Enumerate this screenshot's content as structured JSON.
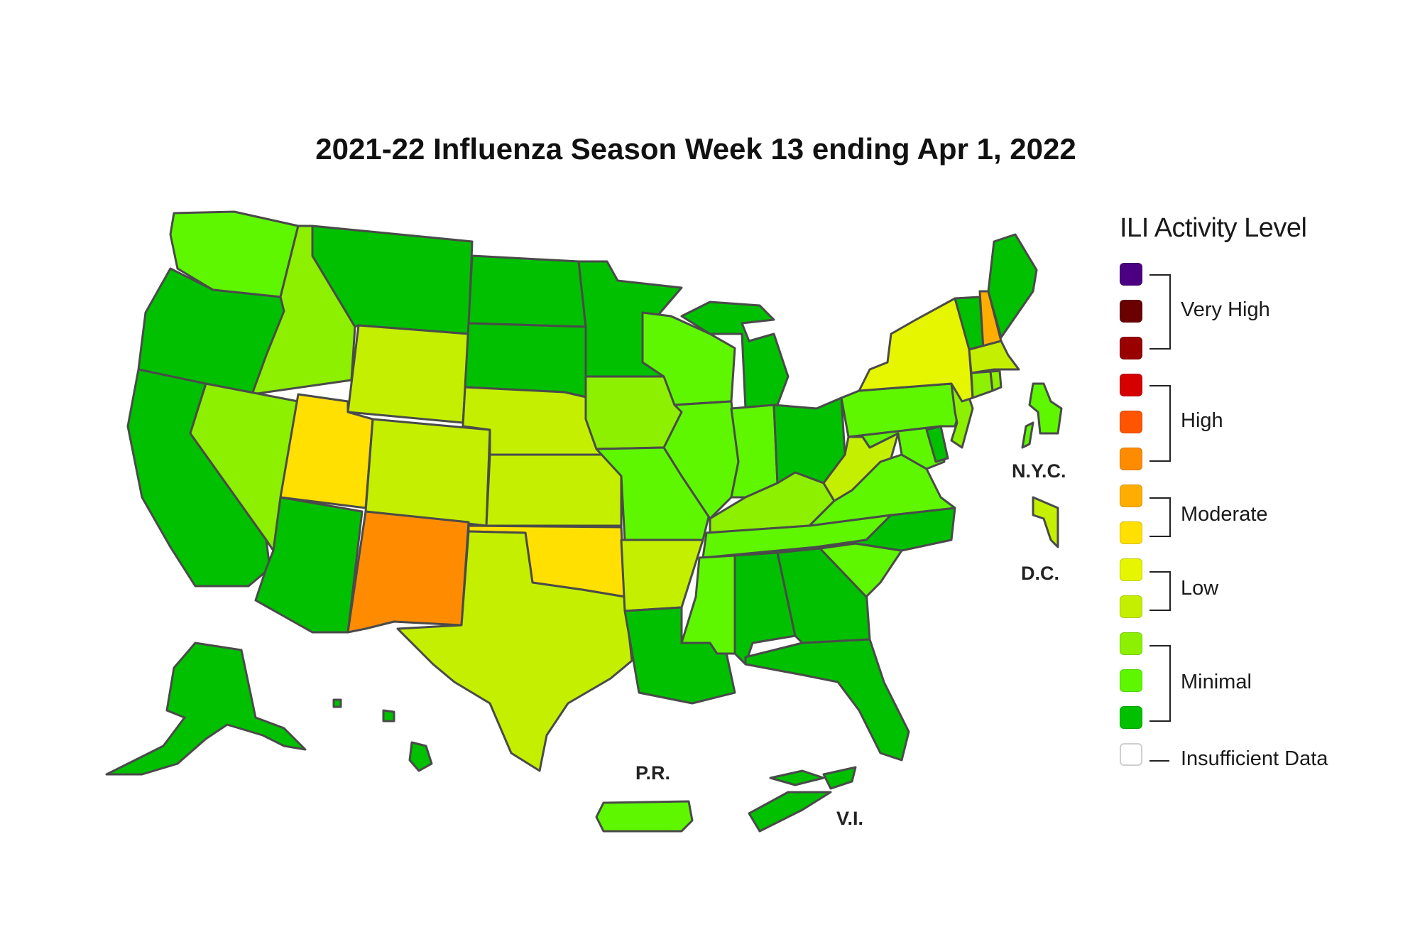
{
  "title": "2021-22 Influenza Season Week 13 ending Apr 1, 2022",
  "legend": {
    "title": "ILI Activity Level",
    "swatches": [
      {
        "level": 13,
        "color": "#4b0082"
      },
      {
        "level": 12,
        "color": "#6b0000"
      },
      {
        "level": 11,
        "color": "#990000"
      },
      {
        "level": 10,
        "color": "#d50000"
      },
      {
        "level": 9,
        "color": "#ff5500"
      },
      {
        "level": 8,
        "color": "#ff8c00"
      },
      {
        "level": 7,
        "color": "#ffae00"
      },
      {
        "level": 6,
        "color": "#ffe000"
      },
      {
        "level": 5,
        "color": "#e6f500"
      },
      {
        "level": 4,
        "color": "#c4f000"
      },
      {
        "level": 3,
        "color": "#8cf000"
      },
      {
        "level": 2,
        "color": "#5ef700"
      },
      {
        "level": 1,
        "color": "#00c000"
      },
      {
        "level": 0,
        "color": "#ffffff"
      }
    ],
    "groups": [
      {
        "label": "Very High"
      },
      {
        "label": "High"
      },
      {
        "label": "Moderate"
      },
      {
        "label": "Low"
      },
      {
        "label": "Minimal"
      },
      {
        "label": "Insufficient Data"
      }
    ]
  },
  "labels": {
    "nyc": "N.Y.C.",
    "dc": "D.C.",
    "pr": "P.R.",
    "vi": "V.I."
  },
  "chart_data": {
    "type": "choropleth",
    "title": "2021-22 Influenza Season Week 13 ending Apr 1, 2022",
    "legend_title": "ILI Activity Level",
    "categories": [
      "Minimal",
      "Low",
      "Moderate",
      "High",
      "Very High",
      "Insufficient Data"
    ],
    "regions": {
      "WA": {
        "level": 2,
        "category": "Minimal"
      },
      "OR": {
        "level": 1,
        "category": "Minimal"
      },
      "CA": {
        "level": 1,
        "category": "Minimal"
      },
      "ID": {
        "level": 3,
        "category": "Minimal"
      },
      "NV": {
        "level": 3,
        "category": "Minimal"
      },
      "MT": {
        "level": 1,
        "category": "Minimal"
      },
      "WY": {
        "level": 4,
        "category": "Low"
      },
      "UT": {
        "level": 6,
        "category": "Moderate"
      },
      "AZ": {
        "level": 1,
        "category": "Minimal"
      },
      "CO": {
        "level": 4,
        "category": "Low"
      },
      "NM": {
        "level": 8,
        "category": "High"
      },
      "ND": {
        "level": 1,
        "category": "Minimal"
      },
      "SD": {
        "level": 1,
        "category": "Minimal"
      },
      "NE": {
        "level": 4,
        "category": "Low"
      },
      "KS": {
        "level": 4,
        "category": "Low"
      },
      "OK": {
        "level": 6,
        "category": "Moderate"
      },
      "TX": {
        "level": 4,
        "category": "Low"
      },
      "MN": {
        "level": 1,
        "category": "Minimal"
      },
      "IA": {
        "level": 3,
        "category": "Minimal"
      },
      "MO": {
        "level": 2,
        "category": "Minimal"
      },
      "AR": {
        "level": 4,
        "category": "Low"
      },
      "LA": {
        "level": 1,
        "category": "Minimal"
      },
      "WI": {
        "level": 2,
        "category": "Minimal"
      },
      "IL": {
        "level": 2,
        "category": "Minimal"
      },
      "MI": {
        "level": 1,
        "category": "Minimal"
      },
      "IN": {
        "level": 2,
        "category": "Minimal"
      },
      "OH": {
        "level": 1,
        "category": "Minimal"
      },
      "KY": {
        "level": 3,
        "category": "Minimal"
      },
      "TN": {
        "level": 2,
        "category": "Minimal"
      },
      "MS": {
        "level": 2,
        "category": "Minimal"
      },
      "AL": {
        "level": 1,
        "category": "Minimal"
      },
      "GA": {
        "level": 1,
        "category": "Minimal"
      },
      "FL": {
        "level": 1,
        "category": "Minimal"
      },
      "SC": {
        "level": 2,
        "category": "Minimal"
      },
      "NC": {
        "level": 1,
        "category": "Minimal"
      },
      "VA": {
        "level": 2,
        "category": "Minimal"
      },
      "WV": {
        "level": 4,
        "category": "Low"
      },
      "PA": {
        "level": 2,
        "category": "Minimal"
      },
      "NY": {
        "level": 5,
        "category": "Low"
      },
      "VT": {
        "level": 1,
        "category": "Minimal"
      },
      "NH": {
        "level": 7,
        "category": "Moderate"
      },
      "ME": {
        "level": 1,
        "category": "Minimal"
      },
      "MA": {
        "level": 4,
        "category": "Low"
      },
      "CT": {
        "level": 3,
        "category": "Minimal"
      },
      "RI": {
        "level": 3,
        "category": "Minimal"
      },
      "NJ": {
        "level": 3,
        "category": "Minimal"
      },
      "DE": {
        "level": 1,
        "category": "Minimal"
      },
      "MD": {
        "level": 2,
        "category": "Minimal"
      },
      "AK": {
        "level": 1,
        "category": "Minimal"
      },
      "HI": {
        "level": 1,
        "category": "Minimal"
      },
      "NYC": {
        "level": 2,
        "category": "Minimal"
      },
      "DC": {
        "level": 4,
        "category": "Low"
      },
      "PR": {
        "level": 2,
        "category": "Minimal"
      },
      "VI": {
        "level": 1,
        "category": "Minimal"
      }
    }
  }
}
